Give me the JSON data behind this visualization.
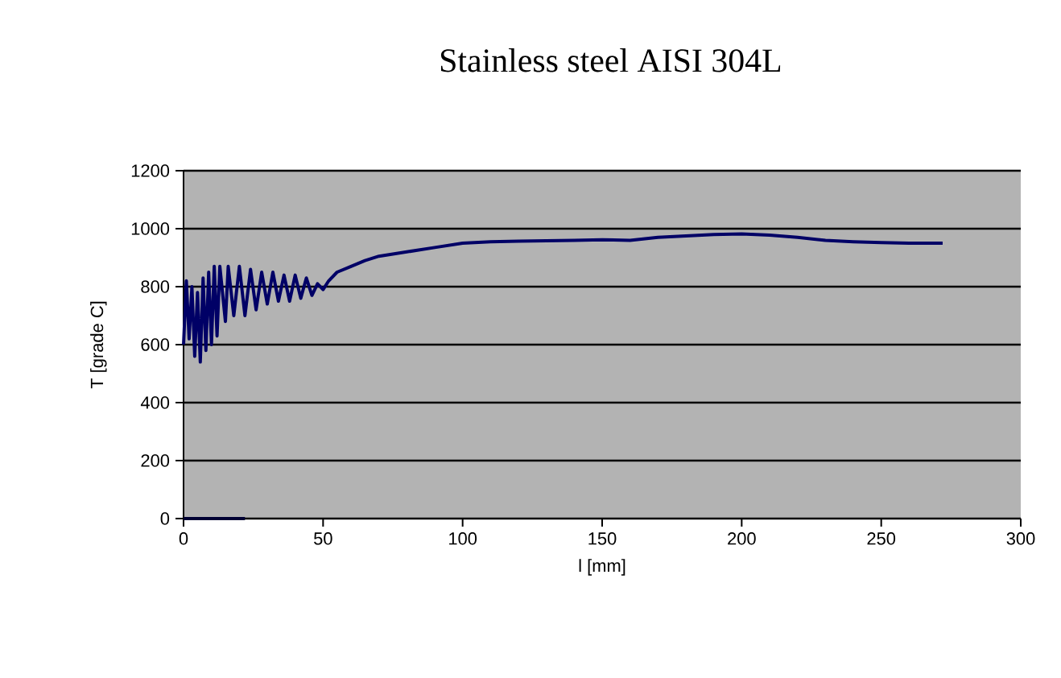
{
  "chart_data": {
    "type": "line",
    "title": "Stainless steel  AISI 304L",
    "xlabel": "l [mm]",
    "ylabel": "T [grade C]",
    "xlim": [
      0,
      300
    ],
    "xticks": [
      0,
      50,
      100,
      150,
      200,
      250,
      300
    ],
    "ylim": [
      0,
      1200
    ],
    "yticks": [
      0,
      200,
      400,
      600,
      800,
      1000,
      1200
    ],
    "grid": "y",
    "marker": "none",
    "line_style": "solid",
    "series": [
      {
        "color": "#000066",
        "x": [
          0,
          1,
          2,
          3,
          4,
          5,
          6,
          7,
          8,
          9,
          10,
          11,
          12,
          13,
          15,
          16,
          18,
          20,
          22,
          24,
          26,
          28,
          30,
          32,
          34,
          36,
          38,
          40,
          42,
          44,
          46,
          48,
          50,
          52,
          55,
          60,
          65,
          70,
          80,
          90,
          100,
          110,
          120,
          140,
          150,
          160,
          170,
          180,
          190,
          200,
          210,
          220,
          230,
          240,
          250,
          260,
          272
        ],
        "values": [
          600,
          820,
          620,
          800,
          560,
          780,
          540,
          830,
          580,
          850,
          600,
          870,
          630,
          870,
          680,
          870,
          700,
          870,
          700,
          860,
          720,
          850,
          740,
          850,
          750,
          840,
          750,
          840,
          760,
          830,
          770,
          810,
          790,
          820,
          850,
          870,
          890,
          905,
          920,
          935,
          950,
          955,
          957,
          960,
          962,
          960,
          970,
          975,
          980,
          982,
          978,
          970,
          960,
          955,
          952,
          950,
          950
        ]
      },
      {
        "color": "#000033",
        "x": [
          0,
          22
        ],
        "values": [
          0,
          0
        ]
      }
    ]
  }
}
